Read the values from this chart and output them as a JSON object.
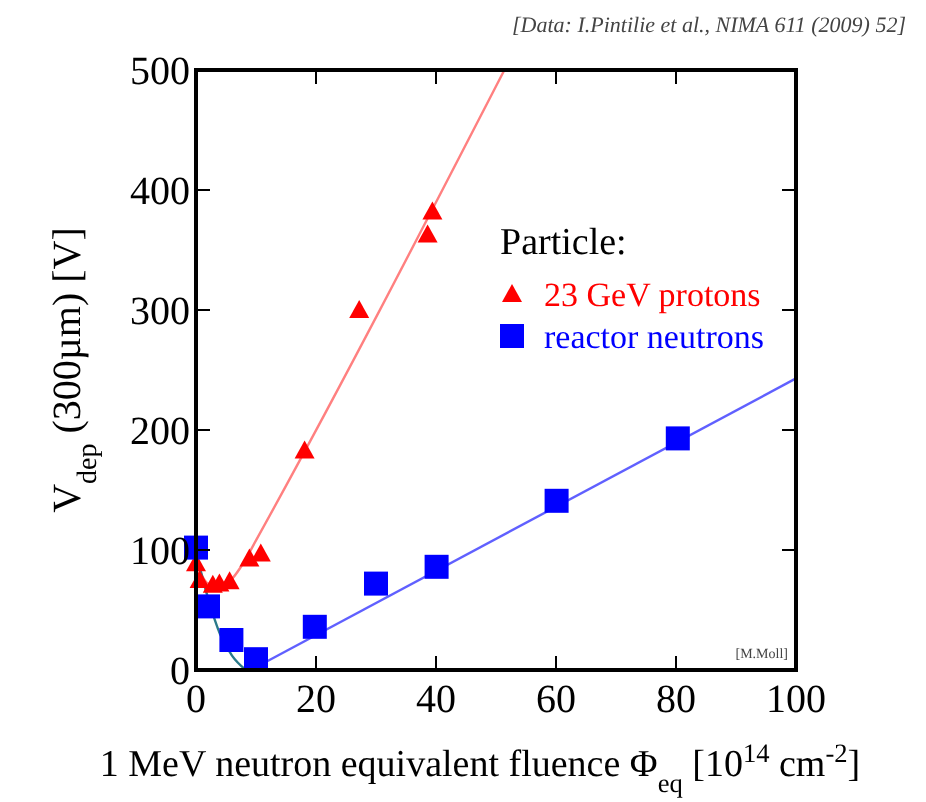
{
  "chart_data": {
    "type": "scatter",
    "xlabel": "1 MeV neutron equivalent fluence Φ$_{eq}$ [10$^{14}$ cm$^{-2}$]",
    "ylabel": "V$_{dep}$ (300µm) [V]",
    "legend_title": "Particle:",
    "legend": "right",
    "grid": false,
    "xlim": [
      0,
      100
    ],
    "xticks": [
      0,
      20,
      40,
      60,
      80,
      100
    ],
    "ylim": [
      0,
      500
    ],
    "yticks": [
      0,
      100,
      200,
      300,
      400,
      500
    ],
    "annotations": [
      "[Data: I.Pintilie et al., NIMA 611 (2009) 52]",
      "[M.Moll]"
    ],
    "series": [
      {
        "name": "23 GeV protons",
        "color": "#ff0000",
        "marker": "triangle",
        "x": [
          0,
          0.6,
          2.8,
          3.9,
          5.6,
          8.9,
          10.8,
          18.1,
          27.2,
          38.6,
          39.4
        ],
        "values": [
          89,
          75,
          71,
          72,
          74,
          93,
          97,
          183,
          300,
          363,
          382
        ]
      },
      {
        "name": "reactor neutrons",
        "color": "#0000ff",
        "marker": "square",
        "x": [
          0,
          2,
          5.9,
          10,
          19.8,
          30,
          40.1,
          60.1,
          80.3
        ],
        "values": [
          102,
          53,
          25,
          9,
          36,
          72,
          86,
          141,
          193
        ]
      },
      {
        "type": "line",
        "color": "#ff8080",
        "marker": "none",
        "x": [
          0,
          2,
          4,
          6,
          8,
          10,
          51.4
        ],
        "values": [
          90,
          72,
          70,
          76,
          90,
          108,
          500
        ]
      },
      {
        "type": "line",
        "color": "#2a7a8a",
        "marker": "none",
        "x": [
          0,
          2,
          4,
          6,
          8.3
        ],
        "values": [
          98,
          60,
          30,
          12,
          0
        ]
      },
      {
        "type": "line",
        "color": "#6060ff",
        "marker": "none",
        "x": [
          11,
          100
        ],
        "values": [
          5,
          243
        ]
      }
    ]
  }
}
